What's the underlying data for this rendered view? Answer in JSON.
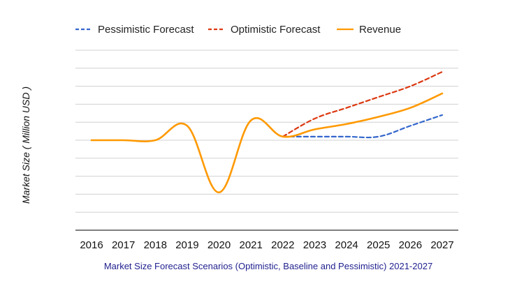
{
  "chart_data": {
    "type": "line",
    "title": "Market Size Forecast Scenarios (Optimistic, Baseline and Pessimistic) 2021-2027",
    "ylabel": "Market Size ( Million USD )",
    "xlabel": "",
    "categories": [
      "2016",
      "2017",
      "2018",
      "2019",
      "2020",
      "2021",
      "2022",
      "2023",
      "2024",
      "2025",
      "2026",
      "2027"
    ],
    "ylim": [
      0,
      10
    ],
    "ytick_count": 10,
    "grid": true,
    "legend_position": "top",
    "series": [
      {
        "name": "Pessimistic Forecast",
        "color": "#3366cc",
        "style": "dashed",
        "values": [
          null,
          null,
          null,
          null,
          null,
          null,
          5.2,
          5.2,
          5.2,
          5.2,
          5.8,
          6.4
        ]
      },
      {
        "name": "Optimistic Forecast",
        "color": "#dc3912",
        "style": "dashed",
        "values": [
          null,
          null,
          null,
          null,
          null,
          null,
          5.2,
          6.2,
          6.8,
          7.4,
          8.0,
          8.8
        ]
      },
      {
        "name": "Revenue",
        "color": "#ff9900",
        "style": "solid",
        "values": [
          5.0,
          5.0,
          5.0,
          5.8,
          2.1,
          6.1,
          5.2,
          5.6,
          5.9,
          6.3,
          6.8,
          7.6
        ]
      }
    ]
  }
}
